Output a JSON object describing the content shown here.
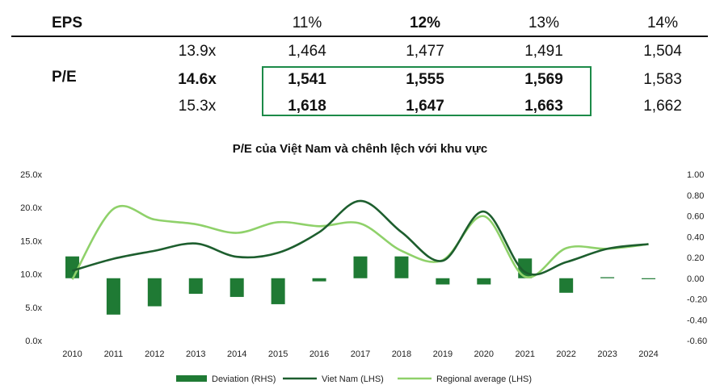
{
  "table": {
    "eps_label": "EPS",
    "pe_label": "P/E",
    "growth_headers": [
      "11%",
      "12%",
      "13%",
      "14%"
    ],
    "pe_values": [
      "13.9x",
      "14.6x",
      "15.3x"
    ],
    "rows": [
      [
        "1,464",
        "1,477",
        "1,491",
        "1,504"
      ],
      [
        "1,541",
        "1,555",
        "1,569",
        "1,583"
      ],
      [
        "1,618",
        "1,647",
        "1,663",
        "1,662"
      ]
    ],
    "highlight_color": "#1c8a48"
  },
  "chart_data": {
    "type": "bar+line",
    "title": "P/E của Việt Nam và chênh lệch với khu vực",
    "categories": [
      "2010",
      "2011",
      "2012",
      "2013",
      "2014",
      "2015",
      "2016",
      "2017",
      "2018",
      "2019",
      "2020",
      "2021",
      "2022",
      "2023",
      "2024"
    ],
    "y_left": {
      "range": [
        0,
        25
      ],
      "ticks": [
        "0.0x",
        "5.0x",
        "10.0x",
        "15.0x",
        "20.0x",
        "25.0x"
      ]
    },
    "y_right": {
      "range": [
        -0.6,
        1.0
      ],
      "ticks": [
        "-0.60",
        "-0.40",
        "-0.20",
        "0.00",
        "0.20",
        "0.40",
        "0.60",
        "0.80",
        "1.00"
      ]
    },
    "series": [
      {
        "name": "Deviation (RHS)",
        "kind": "bar",
        "axis": "right",
        "color": "#1f7a34",
        "values": [
          0.21,
          -0.35,
          -0.27,
          -0.15,
          -0.18,
          -0.25,
          -0.03,
          0.21,
          0.21,
          -0.06,
          -0.06,
          0.19,
          -0.14,
          0.01,
          0.0
        ]
      },
      {
        "name": "Viet Nam (LHS)",
        "kind": "line",
        "axis": "left",
        "color": "#1d5e2e",
        "values": [
          10.5,
          12.3,
          13.5,
          14.6,
          12.6,
          13.2,
          16.3,
          21.0,
          16.3,
          12.0,
          19.4,
          10.3,
          11.8,
          13.8,
          14.5
        ]
      },
      {
        "name": "Regional average (LHS)",
        "kind": "line",
        "axis": "left",
        "color": "#8fd16a",
        "values": [
          9.2,
          19.8,
          18.2,
          17.5,
          16.2,
          17.8,
          17.2,
          17.6,
          13.5,
          12.1,
          18.7,
          9.6,
          13.9,
          13.8,
          14.5
        ]
      }
    ],
    "legend_position": "bottom"
  }
}
